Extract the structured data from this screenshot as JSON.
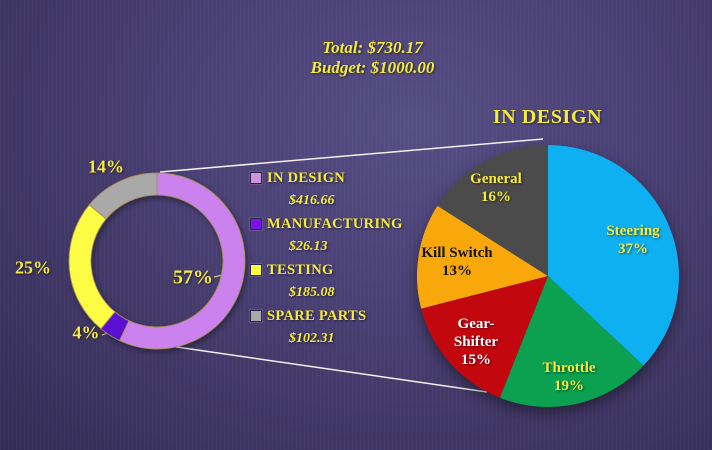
{
  "header": {
    "total_line": "Total: $730.17",
    "budget_line": "Budget: $1000.00"
  },
  "legend": {
    "items": [
      {
        "label": "IN DESIGN",
        "value": "$416.66",
        "swatch_color": "#cf92dc"
      },
      {
        "label": "MANUFACTURING",
        "value": "$26.13",
        "swatch_color": "#7d12e8"
      },
      {
        "label": "TESTING",
        "value": "$185.08",
        "swatch_color": "#ffff42"
      },
      {
        "label": "SPARE PARTS",
        "value": "$102.31",
        "swatch_color": "#a9a9a9"
      }
    ]
  },
  "chart_data": [
    {
      "type": "donut",
      "categories": [
        "IN DESIGN",
        "MANUFACTURING",
        "TESTING",
        "SPARE PARTS"
      ],
      "values": [
        57,
        4,
        25,
        14
      ],
      "amounts": [
        "$416.66",
        "$26.13",
        "$185.08",
        "$102.31"
      ],
      "pct_labels": [
        "57%",
        "4%",
        "25%",
        "14%"
      ],
      "colors": [
        "#cc82ee",
        "#5a10d0",
        "#fdfc45",
        "#a9a9a9"
      ],
      "start_angle_deg": 0,
      "direction": "clockwise",
      "outline_color": "#a98f52"
    },
    {
      "type": "pie",
      "title": "IN DESIGN",
      "categories": [
        "Steering",
        "Throttle",
        "Gear-Shifter",
        "Kill Switch",
        "General"
      ],
      "values": [
        37,
        19,
        15,
        13,
        16
      ],
      "pct_labels": [
        "37%",
        "19%",
        "15%",
        "13%",
        "16%"
      ],
      "colors": [
        "#0fb0f2",
        "#0ba150",
        "#c3070f",
        "#f8a80b",
        "#4b4b4b"
      ],
      "start_angle_deg": 0,
      "direction": "clockwise"
    }
  ]
}
